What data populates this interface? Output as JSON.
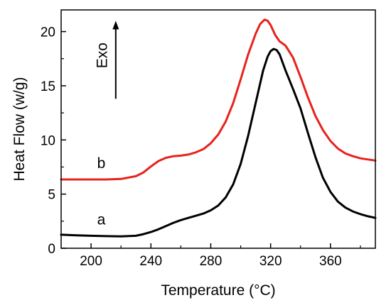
{
  "chart_data": {
    "type": "line",
    "xlabel": "Temperature (°C)",
    "ylabel": "Heat Flow (w/g)",
    "xlim": [
      180,
      390
    ],
    "ylim": [
      0,
      22
    ],
    "x_ticks": [
      200,
      240,
      280,
      320,
      360
    ],
    "y_ticks": [
      0,
      5,
      10,
      15,
      20
    ],
    "grid": false,
    "legend": "none",
    "series": [
      {
        "name": "a",
        "color": "#000000",
        "x": [
          180,
          190,
          200,
          210,
          220,
          230,
          235,
          240,
          245,
          250,
          255,
          260,
          265,
          270,
          275,
          280,
          285,
          290,
          295,
          300,
          305,
          310,
          315,
          318,
          320,
          322,
          324,
          326,
          330,
          335,
          340,
          345,
          350,
          355,
          360,
          365,
          370,
          375,
          380,
          385,
          390
        ],
        "y": [
          1.25,
          1.2,
          1.15,
          1.12,
          1.1,
          1.15,
          1.3,
          1.5,
          1.75,
          2.05,
          2.35,
          2.6,
          2.8,
          3.0,
          3.2,
          3.5,
          3.95,
          4.7,
          5.9,
          7.8,
          10.4,
          13.4,
          16.4,
          17.7,
          18.2,
          18.4,
          18.3,
          17.9,
          16.4,
          14.7,
          12.9,
          10.6,
          8.4,
          6.5,
          5.2,
          4.3,
          3.75,
          3.4,
          3.15,
          2.95,
          2.8
        ]
      },
      {
        "name": "b",
        "color": "#e8221c",
        "x": [
          180,
          190,
          200,
          210,
          220,
          230,
          235,
          240,
          245,
          250,
          255,
          260,
          265,
          270,
          275,
          280,
          285,
          290,
          295,
          300,
          305,
          310,
          313,
          316,
          318,
          320,
          323,
          326,
          330,
          335,
          340,
          345,
          350,
          355,
          360,
          365,
          370,
          375,
          380,
          385,
          390
        ],
        "y": [
          6.35,
          6.35,
          6.35,
          6.35,
          6.4,
          6.65,
          7.0,
          7.55,
          8.05,
          8.35,
          8.5,
          8.55,
          8.65,
          8.85,
          9.15,
          9.7,
          10.5,
          11.7,
          13.4,
          15.6,
          17.9,
          19.8,
          20.7,
          21.1,
          21.0,
          20.6,
          19.7,
          19.1,
          18.7,
          17.6,
          15.8,
          13.9,
          12.2,
          10.9,
          9.9,
          9.2,
          8.75,
          8.5,
          8.3,
          8.2,
          8.1
        ]
      }
    ],
    "annotations": [
      {
        "text": "a",
        "x": 205,
        "y": 2.2
      },
      {
        "text": "b",
        "x": 205,
        "y": 7.4
      },
      {
        "text": "Exo",
        "x": 213,
        "y": 17.8
      }
    ]
  }
}
